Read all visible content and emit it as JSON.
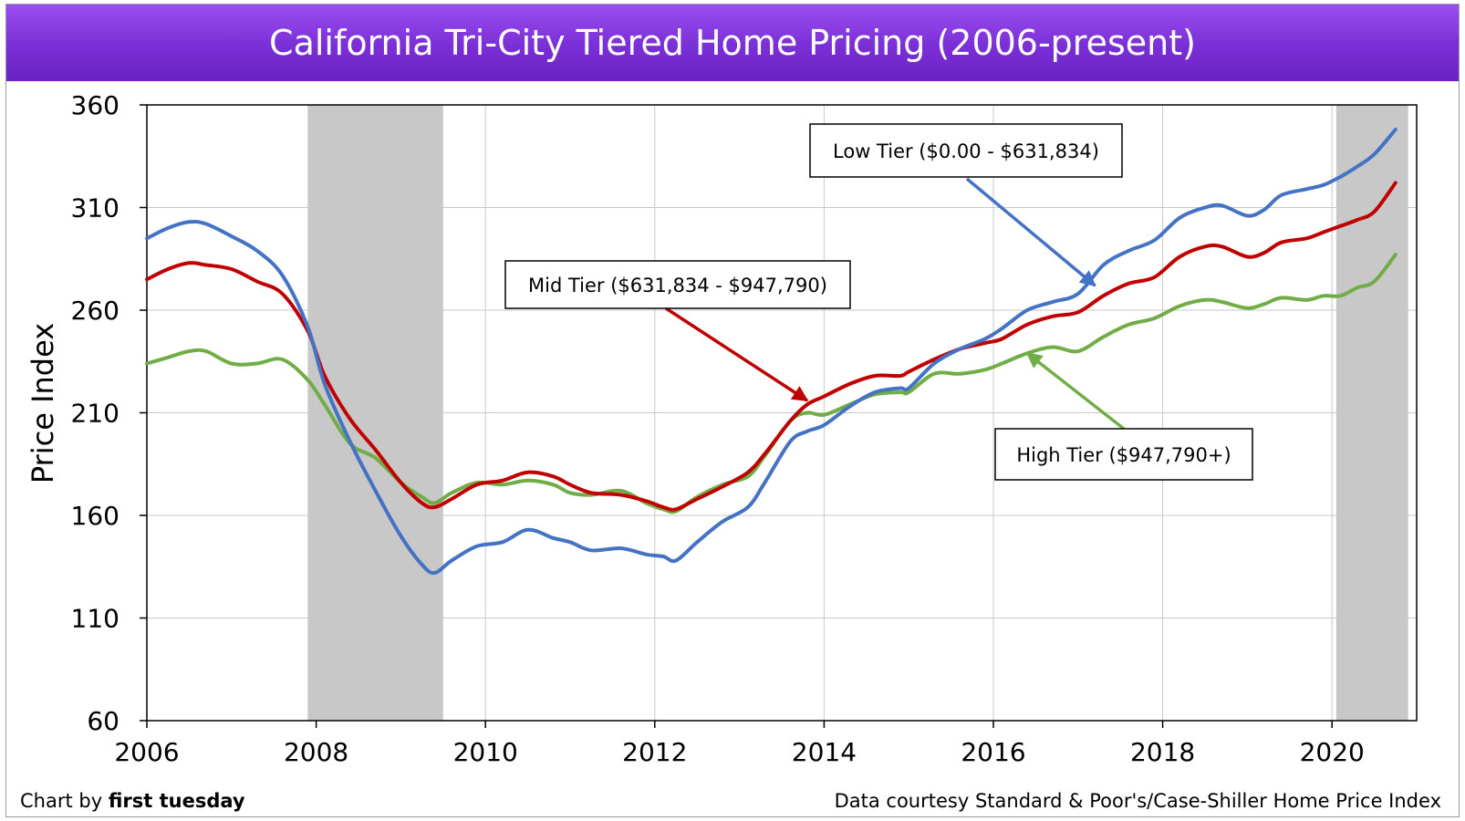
{
  "title": "California Tri-City Tiered Home Pricing (2006-present)",
  "footer": {
    "credit_prefix": "Chart by ",
    "credit_brand": "first tuesday",
    "source": "Data courtesy Standard & Poor's/Case-Shiller Home Price Index"
  },
  "chart_data": {
    "type": "line",
    "title": "California Tri-City Tiered Home Pricing (2006-present)",
    "xlabel": "",
    "ylabel": "Price Index",
    "xlim": [
      2006,
      2021
    ],
    "ylim": [
      60,
      360
    ],
    "xticks": [
      2006,
      2008,
      2010,
      2012,
      2014,
      2016,
      2018,
      2020
    ],
    "yticks": [
      60,
      110,
      160,
      210,
      260,
      310,
      360
    ],
    "grid": true,
    "recession_shading": [
      [
        2007.9,
        2009.5
      ],
      [
        2020.05,
        2020.9
      ]
    ],
    "series": [
      {
        "name": "Low Tier ($0.00 - $631,834)",
        "color": "#4472C4",
        "x": [
          2006.0,
          2006.25,
          2006.5,
          2006.7,
          2007.0,
          2007.3,
          2007.6,
          2007.9,
          2008.1,
          2008.4,
          2008.7,
          2009.0,
          2009.25,
          2009.4,
          2009.6,
          2009.9,
          2010.2,
          2010.5,
          2010.8,
          2011.0,
          2011.25,
          2011.6,
          2011.9,
          2012.1,
          2012.25,
          2012.5,
          2012.8,
          2013.1,
          2013.3,
          2013.6,
          2013.8,
          2014.0,
          2014.3,
          2014.6,
          2014.9,
          2015.0,
          2015.3,
          2015.6,
          2015.9,
          2016.1,
          2016.4,
          2016.7,
          2017.0,
          2017.3,
          2017.6,
          2017.9,
          2018.2,
          2018.5,
          2018.7,
          2019.0,
          2019.2,
          2019.4,
          2019.7,
          2019.9,
          2020.1,
          2020.3,
          2020.5,
          2020.75
        ],
        "values": [
          295,
          300,
          303,
          302,
          296,
          289,
          277,
          252,
          224,
          196,
          172,
          150,
          136,
          132,
          138,
          145,
          147,
          153,
          149,
          147,
          143,
          144,
          141,
          140,
          138,
          147,
          157,
          164,
          176,
          196,
          201,
          204,
          213,
          220,
          222,
          222,
          234,
          241,
          246,
          251,
          260,
          264,
          268,
          282,
          289,
          294,
          305,
          310,
          311,
          306,
          309,
          316,
          319,
          321,
          325,
          330,
          336,
          348
        ]
      },
      {
        "name": "Mid Tier ($631,834 - $947,790)",
        "color": "#C00000",
        "x": [
          2006.0,
          2006.25,
          2006.5,
          2006.7,
          2007.0,
          2007.3,
          2007.6,
          2007.9,
          2008.1,
          2008.4,
          2008.7,
          2009.0,
          2009.25,
          2009.4,
          2009.6,
          2009.9,
          2010.2,
          2010.5,
          2010.8,
          2011.0,
          2011.25,
          2011.6,
          2011.9,
          2012.1,
          2012.25,
          2012.5,
          2012.8,
          2013.1,
          2013.3,
          2013.6,
          2013.8,
          2014.0,
          2014.3,
          2014.6,
          2014.9,
          2015.0,
          2015.3,
          2015.6,
          2015.9,
          2016.1,
          2016.4,
          2016.7,
          2017.0,
          2017.3,
          2017.6,
          2017.9,
          2018.2,
          2018.5,
          2018.7,
          2019.0,
          2019.2,
          2019.4,
          2019.7,
          2019.9,
          2020.1,
          2020.3,
          2020.5,
          2020.75
        ],
        "values": [
          275,
          280,
          283,
          282,
          280,
          274,
          268,
          250,
          228,
          207,
          192,
          176,
          166,
          164,
          168,
          175,
          177,
          181,
          179,
          175,
          171,
          170,
          167,
          164,
          163,
          168,
          174,
          181,
          190,
          206,
          214,
          218,
          224,
          228,
          228,
          230,
          236,
          241,
          244,
          246,
          253,
          257,
          259,
          267,
          273,
          276,
          286,
          291,
          291,
          286,
          288,
          293,
          295,
          298,
          301,
          304,
          308,
          322
        ]
      },
      {
        "name": "High Tier ($947,790+)",
        "color": "#70AD47",
        "x": [
          2006.0,
          2006.25,
          2006.5,
          2006.7,
          2007.0,
          2007.3,
          2007.6,
          2007.9,
          2008.1,
          2008.4,
          2008.7,
          2009.0,
          2009.25,
          2009.4,
          2009.6,
          2009.9,
          2010.2,
          2010.5,
          2010.8,
          2011.0,
          2011.25,
          2011.6,
          2011.9,
          2012.1,
          2012.25,
          2012.5,
          2012.8,
          2013.1,
          2013.3,
          2013.6,
          2013.8,
          2014.0,
          2014.3,
          2014.6,
          2014.9,
          2015.0,
          2015.3,
          2015.6,
          2015.9,
          2016.1,
          2016.4,
          2016.7,
          2017.0,
          2017.3,
          2017.6,
          2017.9,
          2018.2,
          2018.5,
          2018.7,
          2019.0,
          2019.2,
          2019.4,
          2019.7,
          2019.9,
          2020.1,
          2020.3,
          2020.5,
          2020.75
        ],
        "values": [
          234,
          237,
          240,
          240,
          234,
          234,
          236,
          226,
          214,
          195,
          188,
          176,
          169,
          166,
          171,
          176,
          175,
          177,
          175,
          171,
          170,
          172,
          166,
          163,
          162,
          169,
          175,
          179,
          189,
          206,
          210,
          209,
          214,
          219,
          220,
          220,
          229,
          229,
          231,
          234,
          239,
          242,
          240,
          247,
          253,
          256,
          262,
          265,
          264,
          261,
          263,
          266,
          265,
          267,
          267,
          271,
          274,
          287
        ]
      }
    ],
    "annotations": [
      {
        "text": "Low Tier ($0.00 - $631,834)",
        "series": 0,
        "points_to": [
          2017.2,
          272
        ]
      },
      {
        "text": "Mid Tier ($631,834 - $947,790)",
        "series": 1,
        "points_to": [
          2013.8,
          216
        ]
      },
      {
        "text": "High Tier ($947,790+)",
        "series": 2,
        "points_to": [
          2016.4,
          239
        ]
      }
    ]
  }
}
